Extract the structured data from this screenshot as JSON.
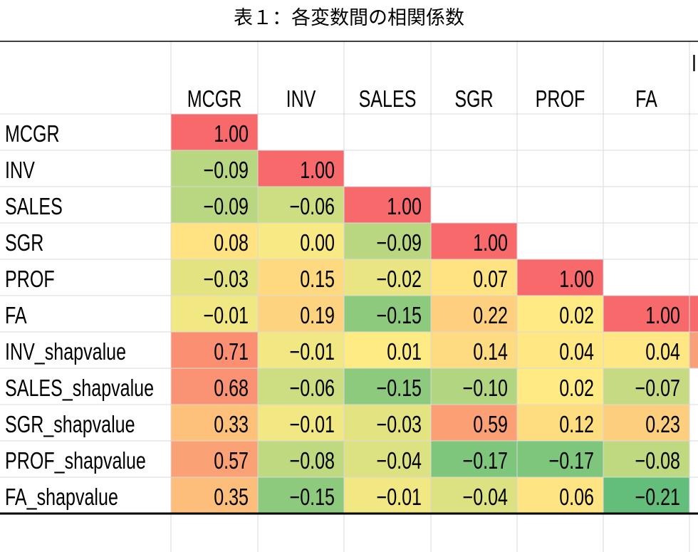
{
  "title": "表１：各変数間の相関係数",
  "clipped_header_fragment": "I",
  "chart_data": {
    "type": "heatmap",
    "title": "表１：各変数間の相関係数",
    "columns": [
      "MCGR",
      "INV",
      "SALES",
      "SGR",
      "PROF",
      "FA"
    ],
    "rows": [
      "MCGR",
      "INV",
      "SALES",
      "SGR",
      "PROF",
      "FA",
      "INV_shapvalue",
      "SALES_shapvalue",
      "SGR_shapvalue",
      "PROF_shapvalue",
      "FA_shapvalue"
    ],
    "values": [
      [
        "1.00",
        null,
        null,
        null,
        null,
        null
      ],
      [
        "-0.09",
        "1.00",
        null,
        null,
        null,
        null
      ],
      [
        "-0.09",
        "-0.06",
        "1.00",
        null,
        null,
        null
      ],
      [
        "0.08",
        "0.00",
        "-0.09",
        "1.00",
        null,
        null
      ],
      [
        "-0.03",
        "0.15",
        "-0.02",
        "0.07",
        "1.00",
        null
      ],
      [
        "-0.01",
        "0.19",
        "-0.15",
        "0.22",
        "0.02",
        "1.00"
      ],
      [
        "0.71",
        "-0.01",
        "0.01",
        "0.14",
        "0.04",
        "0.04"
      ],
      [
        "0.68",
        "-0.06",
        "-0.15",
        "-0.10",
        "0.02",
        "-0.07"
      ],
      [
        "0.33",
        "-0.01",
        "-0.03",
        "0.59",
        "0.12",
        "0.23"
      ],
      [
        "0.57",
        "-0.08",
        "-0.04",
        "-0.17",
        "-0.17",
        "-0.08"
      ],
      [
        "0.35",
        "-0.15",
        "-0.01",
        "-0.04",
        "0.06",
        "-0.21"
      ]
    ],
    "color_scale": {
      "low": "#63be7b",
      "mid": "#ffeb84",
      "high": "#f8696b"
    },
    "partial_column_colors": [
      "#f8696b",
      "#f8a07a"
    ]
  }
}
